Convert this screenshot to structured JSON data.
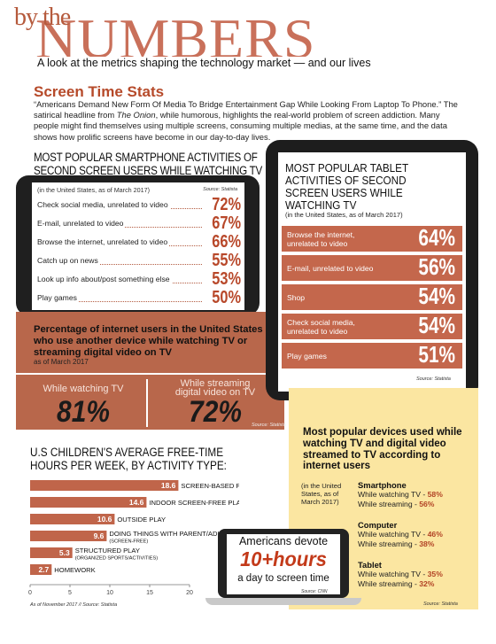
{
  "header": {
    "byline": "by the",
    "masthead": "NUMBERS",
    "tagline": "A look at the metrics shaping the technology market — and our lives"
  },
  "intro": {
    "section_title": "Screen Time Stats",
    "text_before": "“Americans Demand New Form Of Media To Bridge Entertainment Gap While Looking From Laptop To Phone.” The satirical headline from ",
    "source_italic": "The Onion",
    "text_after": ", while humorous, highlights the real-world problem of screen addiction. Many people might find themselves using multiple screens, consuming multiple medias, at the same time, and the data shows how prolific screens have become in our day-to-day lives."
  },
  "smartphone": {
    "title": "MOST POPULAR SMARTPHONE ACTIVITIES OF SECOND SCREEN USERS WHILE WATCHING TV",
    "context": "(in the United States, as of March 2017)",
    "source": "Source: Statista",
    "rows": [
      {
        "label": "Check social media, unrelated to video",
        "value": "72%"
      },
      {
        "label": "E-mail, unrelated to video",
        "value": "67%"
      },
      {
        "label": "Browse the internet, unrelated to video",
        "value": "66%"
      },
      {
        "label": "Catch up on news",
        "value": "55%"
      },
      {
        "label": "Look up info about/post something else",
        "value": "53%"
      },
      {
        "label": "Play games",
        "value": "50%"
      }
    ]
  },
  "streaming": {
    "question": "Percentage of internet users in the United States who use another device while watching TV or streaming digital video on TV",
    "date": "as of March 2017",
    "left_label": "While watching TV",
    "left_value": "81%",
    "right_label_1": "While streaming",
    "right_label_2": "digital video on TV",
    "right_value": "72%",
    "source": "Source: Statista"
  },
  "tablet": {
    "title": "MOST POPULAR TABLET ACTIVITIES OF SECOND SCREEN USERS WHILE WATCHING TV",
    "context": "(in the United States, as of March 2017)",
    "source": "Source: Statista",
    "rows": [
      {
        "label": "Browse the internet, unrelated to video",
        "value": "64%"
      },
      {
        "label": "E-mail, unrelated to video",
        "value": "56%"
      },
      {
        "label": "Shop",
        "value": "54%"
      },
      {
        "label": "Check social media, unrelated to video",
        "value": "54%"
      },
      {
        "label": "Play games",
        "value": "51%"
      }
    ]
  },
  "devices": {
    "title": "Most popular devices used while watching TV and digital video streamed to TV according to internet users",
    "context": "(in the United States, as of March 2017)",
    "source": "Source: Statista",
    "groups": [
      {
        "name": "Smartphone",
        "tv_label": "While watching TV - ",
        "tv_value": "58%",
        "stream_label": "While streaming - ",
        "stream_value": "56%"
      },
      {
        "name": "Computer",
        "tv_label": "While watching TV - ",
        "tv_value": "46%",
        "stream_label": "While streaming - ",
        "stream_value": "38%"
      },
      {
        "name": "Tablet",
        "tv_label": "While watching TV - ",
        "tv_value": "35%",
        "stream_label": "While streaming - ",
        "stream_value": "32%"
      }
    ]
  },
  "laptop": {
    "line1": "Americans devote",
    "line2": "10+hours",
    "line3": "a day to screen time",
    "source": "Source: CNN"
  },
  "kids": {
    "title": "U.S CHILDREN'S AVERAGE FREE-TIME HOURS PER WEEK, BY ACTIVITY TYPE:",
    "date_source": "As of November 2017 // Source: Statista"
  },
  "chart_data": {
    "type": "bar",
    "orientation": "horizontal",
    "title": "U.S CHILDREN'S AVERAGE FREE-TIME HOURS PER WEEK, BY ACTIVITY TYPE:",
    "categories": [
      "SCREEN-BASED PLAY",
      "INDOOR SCREEN-FREE PLAY",
      "OUTSIDE PLAY",
      "DOING THINGS WITH PARENT/ADULT",
      "STRUCTURED PLAY",
      "HOMEWORK"
    ],
    "sublabels": [
      "",
      "",
      "",
      "(SCREEN-FREE)",
      "(ORGANIZED SPORTS/ACTIVITIES)",
      ""
    ],
    "values": [
      18.6,
      14.6,
      10.6,
      9.6,
      5.3,
      2.7
    ],
    "value_labels": [
      "18.6",
      "14.6",
      "10.6",
      "9.6",
      "5.3",
      "2.7"
    ],
    "xlim": [
      0,
      20
    ],
    "xticks": [
      "0",
      "5",
      "10",
      "15",
      "20"
    ],
    "bar_color": "#c0654a",
    "grid": false
  },
  "colors": {
    "accent": "#b8482a",
    "panel_brown": "#b8674b",
    "panel_yellow": "#fbe6a1",
    "tablet_row": "#c4674c"
  }
}
